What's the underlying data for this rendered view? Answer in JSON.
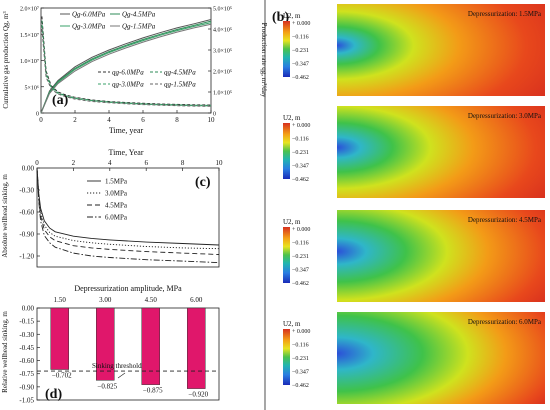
{
  "chart_data": [
    {
      "panel": "(a)",
      "type": "line",
      "xlabel": "Time, year",
      "ylabel": "Cumulative gas production Qg, m³",
      "y2label": "Production rate qg, m³/day",
      "xlim": [
        0,
        10
      ],
      "ylim": [
        0,
        20000000
      ],
      "y2lim": [
        0,
        500000
      ],
      "x_ticks": [
        "0",
        "2",
        "4",
        "6",
        "8",
        "10"
      ],
      "y_ticks": [
        "0",
        "5×10⁶",
        "1.0×10⁷",
        "1.5×10⁷",
        "2.0×10⁷"
      ],
      "y2_ticks": [
        "0",
        "1.0×10⁵",
        "2.0×10⁵",
        "3.0×10⁵",
        "4.0×10⁵",
        "5.0×10⁵"
      ],
      "legend_cumulative": [
        "Qg-6.0MPa",
        "Qg-4.5MPa",
        "Qg-3.0MPa",
        "Qg-1.5MPa"
      ],
      "legend_rate": [
        "qg-6.0MPa",
        "qg-4.5MPa",
        "qg-3.0MPa",
        "qg-1.5MPa"
      ],
      "series_cumulative": [
        {
          "name": "Qg-6.0MPa",
          "color": "#555555",
          "x": [
            0,
            0.5,
            1,
            2,
            3,
            4,
            5,
            6,
            7,
            8,
            9,
            10
          ],
          "y": [
            0,
            4200000,
            6200000,
            8800000,
            10600000,
            12000000,
            13200000,
            14300000,
            15300000,
            16200000,
            17000000,
            17800000
          ]
        },
        {
          "name": "Qg-4.5MPa",
          "color": "#2e8b57",
          "x": [
            0,
            0.5,
            1,
            2,
            3,
            4,
            5,
            6,
            7,
            8,
            9,
            10
          ],
          "y": [
            0,
            4000000,
            6000000,
            8500000,
            10300000,
            11700000,
            12900000,
            14000000,
            15000000,
            15900000,
            16700000,
            17500000
          ]
        },
        {
          "name": "Qg-3.0MPa",
          "color": "#3aa26a",
          "x": [
            0,
            0.5,
            1,
            2,
            3,
            4,
            5,
            6,
            7,
            8,
            9,
            10
          ],
          "y": [
            0,
            3900000,
            5800000,
            8300000,
            10100000,
            11500000,
            12700000,
            13800000,
            14800000,
            15700000,
            16500000,
            17200000
          ]
        },
        {
          "name": "Qg-1.5MPa",
          "color": "#777777",
          "x": [
            0,
            0.5,
            1,
            2,
            3,
            4,
            5,
            6,
            7,
            8,
            9,
            10
          ],
          "y": [
            0,
            3700000,
            5600000,
            8000000,
            9800000,
            11200000,
            12400000,
            13500000,
            14500000,
            15400000,
            16200000,
            16900000
          ]
        }
      ],
      "series_rate": [
        {
          "name": "qg-6.0MPa",
          "color": "#333333",
          "x": [
            0.05,
            0.3,
            0.6,
            1,
            1.5,
            2,
            3,
            4,
            5,
            6,
            7,
            8,
            9,
            10
          ],
          "y": [
            460000,
            200000,
            130000,
            100000,
            85000,
            75000,
            62000,
            55000,
            50000,
            46000,
            43000,
            41000,
            39000,
            38000
          ]
        },
        {
          "name": "qg-4.5MPa",
          "color": "#2e8b57",
          "x": [
            0.05,
            0.3,
            0.6,
            1,
            1.5,
            2,
            3,
            4,
            5,
            6,
            7,
            8,
            9,
            10
          ],
          "y": [
            440000,
            190000,
            125000,
            96000,
            82000,
            72000,
            60000,
            53000,
            48000,
            44000,
            41000,
            39000,
            37000,
            36000
          ]
        },
        {
          "name": "qg-3.0MPa",
          "color": "#3aa26a",
          "x": [
            0.05,
            0.3,
            0.6,
            1,
            1.5,
            2,
            3,
            4,
            5,
            6,
            7,
            8,
            9,
            10
          ],
          "y": [
            420000,
            180000,
            120000,
            93000,
            79000,
            69000,
            58000,
            51000,
            46000,
            42000,
            39000,
            37000,
            35000,
            34000
          ]
        },
        {
          "name": "qg-1.5MPa",
          "color": "#666666",
          "x": [
            0.05,
            0.3,
            0.6,
            1,
            1.5,
            2,
            3,
            4,
            5,
            6,
            7,
            8,
            9,
            10
          ],
          "y": [
            400000,
            170000,
            115000,
            90000,
            76000,
            66000,
            55000,
            49000,
            44000,
            40000,
            37000,
            35000,
            33000,
            32000
          ]
        }
      ]
    },
    {
      "panel": "(c)",
      "type": "line",
      "xlabel": "Time, Year",
      "ylabel": "Absolute wellhead sinking, m",
      "xlim": [
        0,
        10
      ],
      "ylim": [
        -1.35,
        0
      ],
      "x_ticks": [
        "0",
        "2",
        "4",
        "6",
        "8",
        "10"
      ],
      "y_ticks": [
        "0.00",
        "-0.30",
        "-0.60",
        "-0.90",
        "-1.20"
      ],
      "series": [
        {
          "name": "1.5MPa",
          "dash": "solid",
          "x": [
            0,
            0.1,
            0.2,
            0.4,
            0.7,
            1,
            2,
            3,
            4,
            6,
            8,
            10
          ],
          "y": [
            0,
            -0.35,
            -0.55,
            -0.72,
            -0.82,
            -0.87,
            -0.93,
            -0.96,
            -0.98,
            -1.01,
            -1.03,
            -1.05
          ]
        },
        {
          "name": "3.0MPa",
          "dash": "dot",
          "x": [
            0,
            0.1,
            0.2,
            0.4,
            0.7,
            1,
            2,
            3,
            4,
            6,
            8,
            10
          ],
          "y": [
            0,
            -0.38,
            -0.6,
            -0.78,
            -0.88,
            -0.93,
            -0.99,
            -1.02,
            -1.04,
            -1.07,
            -1.09,
            -1.1
          ]
        },
        {
          "name": "4.5MPa",
          "dash": "dash",
          "x": [
            0,
            0.1,
            0.2,
            0.4,
            0.7,
            1,
            2,
            3,
            4,
            6,
            8,
            10
          ],
          "y": [
            0,
            -0.42,
            -0.65,
            -0.84,
            -0.94,
            -0.99,
            -1.06,
            -1.09,
            -1.11,
            -1.14,
            -1.16,
            -1.18
          ]
        },
        {
          "name": "6.0MPa",
          "dash": "dashdot",
          "x": [
            0,
            0.1,
            0.2,
            0.4,
            0.7,
            1,
            2,
            3,
            4,
            6,
            8,
            10
          ],
          "y": [
            0,
            -0.46,
            -0.72,
            -0.92,
            -1.02,
            -1.08,
            -1.16,
            -1.2,
            -1.22,
            -1.25,
            -1.27,
            -1.29
          ]
        }
      ]
    },
    {
      "panel": "(d)",
      "type": "bar",
      "xlabel": "Depressurization amplitude, MPa",
      "ylabel": "Relative wellhead sinking, m",
      "categories": [
        "1.50",
        "3.00",
        "4.50",
        "6.00"
      ],
      "values": [
        -0.702,
        -0.825,
        -0.875,
        -0.92
      ],
      "value_labels": [
        "−0.702",
        "−0.825",
        "−0.875",
        "−0.920"
      ],
      "ylim": [
        -1.05,
        0
      ],
      "y_ticks": [
        "0.00",
        "-0.15",
        "-0.30",
        "-0.45",
        "-0.60",
        "-0.75",
        "-0.90",
        "-1.05"
      ],
      "bar_color": "#e0176b",
      "threshold": -0.72,
      "threshold_label": "Sinking threshold"
    }
  ],
  "contours": {
    "panel_label": "(b)",
    "title": "U2, m",
    "scale_labels": [
      "+ 0.000",
      "−0.116",
      "−0.231",
      "−0.347",
      "−0.462"
    ],
    "panels": [
      {
        "label": "Depressurization: 1.5MPa",
        "level": 0.2
      },
      {
        "label": "Depressurization: 3.0MPa",
        "level": 0.4
      },
      {
        "label": "Depressurization: 4.5MPa",
        "level": 0.6
      },
      {
        "label": "Depressurization: 6.0MPa",
        "level": 0.85
      }
    ]
  }
}
